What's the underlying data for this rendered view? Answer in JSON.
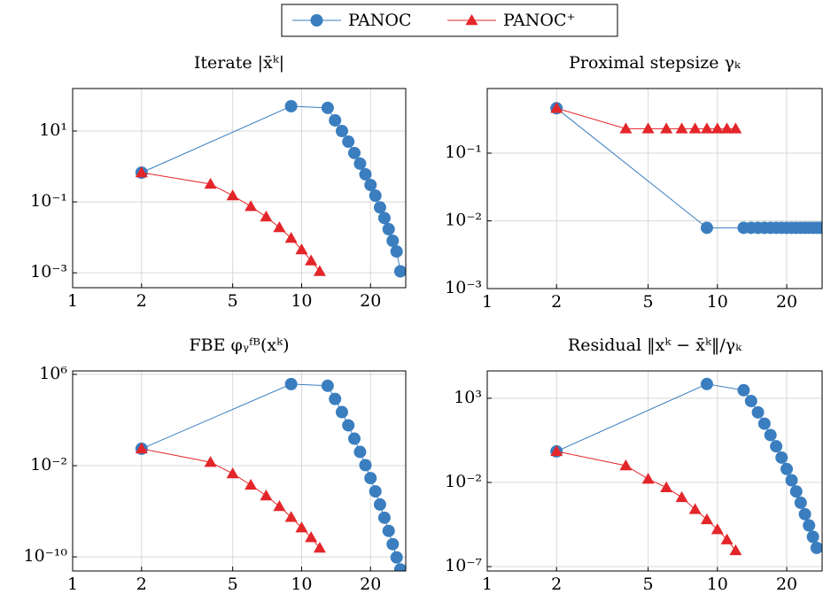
{
  "chart_data": [
    {
      "type": "line",
      "title": "Iterate |x̄ᵏ|",
      "xscale": "log",
      "yscale": "log",
      "grid": true,
      "xlim": [
        1,
        28.5
      ],
      "ylim": [
        0.00038,
        158
      ],
      "xticks": [
        1,
        2,
        5,
        10,
        20
      ],
      "yticks": [
        {
          "value": 10,
          "label": "10¹"
        },
        {
          "value": 0.1,
          "label": "10⁻¹"
        },
        {
          "value": 0.001,
          "label": "10⁻³"
        }
      ],
      "series": [
        {
          "name": "PANOC",
          "color": "#3a7ebf",
          "marker": "circle",
          "x": [
            2,
            9,
            13,
            14,
            15,
            16,
            17,
            18,
            19,
            20,
            21,
            22,
            23,
            24,
            25,
            26,
            27
          ],
          "values": [
            0.67,
            50,
            45,
            20,
            10,
            5,
            2.4,
            1.2,
            0.6,
            0.3,
            0.15,
            0.07,
            0.035,
            0.017,
            0.008,
            0.004,
            0.0011
          ]
        },
        {
          "name": "PANOC⁺",
          "color": "#e3262a",
          "marker": "triangle",
          "x": [
            2,
            4,
            5,
            6,
            7,
            8,
            9,
            10,
            11,
            12
          ],
          "values": [
            0.67,
            0.32,
            0.15,
            0.075,
            0.038,
            0.019,
            0.0095,
            0.0045,
            0.0022,
            0.0011
          ]
        }
      ]
    },
    {
      "type": "line",
      "title": "Proximal stepsize γₖ",
      "xscale": "log",
      "yscale": "log",
      "grid": true,
      "xlim": [
        1,
        28.5
      ],
      "ylim": [
        0.001,
        0.9
      ],
      "xticks": [
        1,
        2,
        5,
        10,
        20
      ],
      "yticks": [
        {
          "value": 0.1,
          "label": "10⁻¹"
        },
        {
          "value": 0.01,
          "label": "10⁻²"
        },
        {
          "value": 0.001,
          "label": "10⁻³"
        }
      ],
      "series": [
        {
          "color": "#3a7ebf",
          "marker": "circle",
          "x": [
            2,
            9,
            13,
            14,
            15,
            16,
            17,
            18,
            19,
            20,
            21,
            22,
            23,
            24,
            25,
            26,
            27,
            28
          ],
          "values": [
            0.46,
            0.0079,
            0.0079,
            0.0079,
            0.0079,
            0.0079,
            0.0079,
            0.0079,
            0.0079,
            0.0079,
            0.0079,
            0.0079,
            0.0079,
            0.0079,
            0.0079,
            0.0079,
            0.0079,
            0.0079
          ]
        },
        {
          "color": "#e3262a",
          "marker": "triangle",
          "x": [
            2,
            4,
            5,
            6,
            7,
            8,
            9,
            10,
            11,
            12
          ],
          "values": [
            0.46,
            0.23,
            0.23,
            0.23,
            0.23,
            0.23,
            0.23,
            0.23,
            0.23,
            0.23
          ]
        }
      ]
    },
    {
      "type": "line",
      "title": "FBE φᵧᶠᴮ(xᵏ)",
      "xscale": "log",
      "yscale": "log",
      "grid": true,
      "xlim": [
        1,
        28.5
      ],
      "ylim": [
        5.8e-12,
        2000000
      ],
      "xticks": [
        1,
        2,
        5,
        10,
        20
      ],
      "yticks": [
        {
          "value": 1000000,
          "label": "10⁶"
        },
        {
          "value": 0.01,
          "label": "10⁻²"
        },
        {
          "value": 1e-10,
          "label": "10⁻¹⁰"
        }
      ],
      "series": [
        {
          "color": "#3a7ebf",
          "marker": "circle",
          "x": [
            2,
            9,
            13,
            14,
            15,
            16,
            17,
            18,
            19,
            20,
            21,
            22,
            23,
            24,
            25,
            26,
            27
          ],
          "values": [
            0.3,
            140000,
            100000,
            7000,
            490,
            34,
            2.3,
            0.16,
            0.011,
            0.0008,
            5.5e-05,
            3.9e-06,
            2.7e-07,
            1.9e-08,
            1.3e-09,
            9e-11,
            8e-12
          ]
        },
        {
          "color": "#e3262a",
          "marker": "triangle",
          "x": [
            2,
            4,
            5,
            6,
            7,
            8,
            9,
            10,
            11,
            12
          ],
          "values": [
            0.3,
            0.02,
            0.002,
            0.0002,
            2.3e-05,
            2.7e-06,
            3e-07,
            3.6e-08,
            5e-09,
            6e-10
          ]
        }
      ]
    },
    {
      "type": "line",
      "title": "Residual ‖xᵏ − x̄ᵏ‖/γₖ",
      "xscale": "log",
      "yscale": "log",
      "grid": true,
      "xlim": [
        1,
        28.5
      ],
      "ylim": [
        5.5e-08,
        42000
      ],
      "xticks": [
        1,
        2,
        5,
        10,
        20
      ],
      "yticks": [
        {
          "value": 1000,
          "label": "10³"
        },
        {
          "value": 0.01,
          "label": "10⁻²"
        },
        {
          "value": 1e-07,
          "label": "10⁻⁷"
        }
      ],
      "series": [
        {
          "color": "#3a7ebf",
          "marker": "circle",
          "x": [
            2,
            9,
            13,
            14,
            15,
            16,
            17,
            18,
            19,
            20,
            21,
            22,
            23,
            24,
            25,
            26,
            27
          ],
          "values": [
            0.7,
            7000,
            3000,
            680,
            145,
            31,
            6.5,
            1.4,
            0.3,
            0.063,
            0.0135,
            0.0029,
            0.00062,
            0.00013,
            2.8e-05,
            5.9e-06,
            1.3e-06
          ]
        },
        {
          "color": "#e3262a",
          "marker": "triangle",
          "x": [
            2,
            4,
            5,
            6,
            7,
            8,
            9,
            10,
            11,
            12
          ],
          "values": [
            0.7,
            0.1,
            0.016,
            0.005,
            0.0013,
            0.00025,
            6.3e-05,
            1.6e-05,
            4e-06,
            9e-07
          ]
        }
      ]
    }
  ]
}
